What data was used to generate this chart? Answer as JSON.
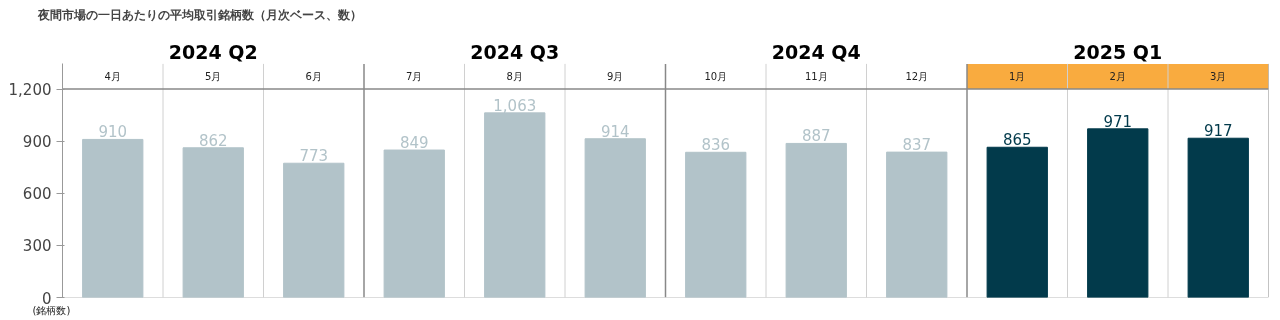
{
  "chart_data": {
    "type": "bar",
    "title": "夜間市場の一日あたりの平均取引銘柄数（月次ベース、数）",
    "ylabel": "(銘柄数)",
    "categories": [
      "4月",
      "5月",
      "6月",
      "7月",
      "8月",
      "9月",
      "10月",
      "11月",
      "12月",
      "1月",
      "2月",
      "3月"
    ],
    "values": [
      910,
      862,
      773,
      849,
      1063,
      914,
      836,
      887,
      837,
      865,
      971,
      917
    ],
    "colors": [
      "#b2c3c9",
      "#b2c3c9",
      "#b2c3c9",
      "#b2c3c9",
      "#b2c3c9",
      "#b2c3c9",
      "#b2c3c9",
      "#b2c3c9",
      "#b2c3c9",
      "#023a4b",
      "#023a4b",
      "#023a4b"
    ],
    "value_labels": [
      "910",
      "862",
      "773",
      "849",
      "1,063",
      "914",
      "836",
      "887",
      "837",
      "865",
      "971",
      "917"
    ],
    "ylim": [
      0,
      1345
    ],
    "yticks": [
      0,
      {
        "value": 300,
        "label": "300"
      },
      {
        "value": 600,
        "label": "600"
      },
      {
        "value": 900,
        "label": "900"
      },
      {
        "value": 1200,
        "label": "1,200"
      }
    ],
    "grid": "x",
    "bands": [
      {
        "axis": "x",
        "from": "1月",
        "to": "3月",
        "color": "#f9ab3f"
      }
    ],
    "annotations": [
      "2024 Q2",
      "2024 Q3",
      "2024 Q4",
      "2025 Q1"
    ]
  }
}
